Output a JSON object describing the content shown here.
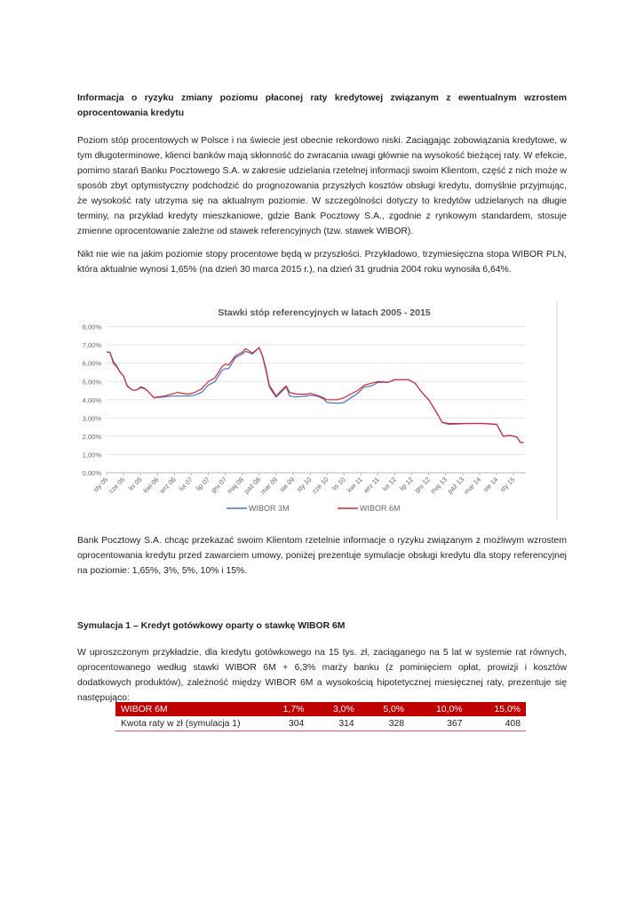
{
  "title": "Informacja o ryzyku zmiany poziomu płaconej raty kredytowej związanym z ewentualnym wzrostem oprocentowania kredytu",
  "paragraphs": [
    "Poziom stóp procentowych w Polsce i na świecie jest obecnie rekordowo niski. Zaciągając zobowiązania kredytowe, w tym długoterminowe, klienci banków mają skłonność do zwracania uwagi głównie na wysokość bieżącej raty. W efekcie, pomimo starań Banku Pocztowego S.A. w zakresie udzielania rzetelnej informacji swoim Klientom, część z nich może w sposób zbyt optymistyczny podchodzić do prognozowania przyszłych kosztów obsługi kredytu, domyślnie przyjmując, że wysokość raty utrzyma się na aktualnym poziomie. W szczególności dotyczy to kredytów udzielanych na długie terminy, na przykład kredyty mieszkaniowe, gdzie Bank Pocztowy S.A., zgodnie z rynkowym standardem, stosuje zmienne oprocentowanie zależne od stawek referencyjnych (tzw. stawek WIBOR).",
    "Nikt nie wie na jakim poziomie stopy procentowe będą w przyszłości. Przykładowo, trzymiesięczna stopa WIBOR PLN, która aktualnie wynosi 1,65% (na dzień 30 marca 2015 r.), na dzień 31 grudnia 2004 roku wynosiła 6,64%.",
    "Bank Pocztowy S.A. chcąc przekazać swoim Klientom rzetelnie informacje o ryzyku związanym z możliwym wzrostem oprocentowania kredytu przed zawarciem umowy, poniżej prezentuje symulacje obsługi kredytu dla stopy referencyjnej na poziomie: 1,65%, 3%, 5%, 10% i 15%."
  ],
  "simulation": {
    "heading": "Symulacja 1 – Kredyt gotówkowy oparty o stawkę WIBOR 6M",
    "text": "W uproszczonym przykładzie, dla kredytu gotówkowego na 15 tys. zł, zaciąganego na 5 lat w systemie rat równych, oprocentowanego według stawki WIBOR 6M + 6,3% marży banku (z pominięciem opłat, prowizji i kosztów dodatkowych produktów), zależność między WIBOR 6M a wysokością hipotetycznej miesięcznej raty, prezentuje się następująco:",
    "table": {
      "header": [
        "WIBOR 6M",
        "1,7%",
        "3,0%",
        "5,0%",
        "10,0%",
        "15,0%"
      ],
      "row": [
        "Kwota raty w zł (symulacja 1)",
        "304",
        "314",
        "328",
        "367",
        "408"
      ],
      "header_color": "#c00000"
    }
  },
  "chart_data": {
    "type": "line",
    "title": "Stawki stóp referencyjnych w latach 2005 - 2015",
    "ylim": [
      0,
      8
    ],
    "yticks": [
      "0,00%",
      "1,00%",
      "2,00%",
      "3,00%",
      "4,00%",
      "5,00%",
      "6,00%",
      "7,00%",
      "8,00%"
    ],
    "xticks": [
      "sty 05",
      "cze 05",
      "lis 05",
      "kwi 06",
      "wrz 06",
      "lut 07",
      "lip 07",
      "gru 07",
      "maj 08",
      "paź 08",
      "mar 09",
      "sie 09",
      "sty 10",
      "cze 10",
      "lis 10",
      "kwi 11",
      "wrz 11",
      "lut 12",
      "lip 12",
      "gru 12",
      "maj 13",
      "paź 13",
      "mar 14",
      "sie 14",
      "sty 15"
    ],
    "grid": true,
    "legend": "bottom",
    "x": [
      "2005-01",
      "2005-02",
      "2005-03",
      "2005-04",
      "2005-05",
      "2005-06",
      "2005-07",
      "2005-08",
      "2005-09",
      "2005-10",
      "2005-11",
      "2005-12",
      "2006-01",
      "2006-02",
      "2006-03",
      "2006-04",
      "2006-06",
      "2006-08",
      "2006-10",
      "2007-01",
      "2007-03",
      "2007-05",
      "2007-07",
      "2007-09",
      "2007-11",
      "2007-12",
      "2008-01",
      "2008-03",
      "2008-05",
      "2008-06",
      "2008-08",
      "2008-10",
      "2008-11",
      "2008-12",
      "2009-01",
      "2009-02",
      "2009-03",
      "2009-05",
      "2009-06",
      "2009-07",
      "2009-09",
      "2009-12",
      "2010-01",
      "2010-03",
      "2010-05",
      "2010-06",
      "2010-09",
      "2010-11",
      "2011-01",
      "2011-03",
      "2011-05",
      "2011-07",
      "2011-09",
      "2011-12",
      "2012-02",
      "2012-06",
      "2012-08",
      "2012-10",
      "2012-12",
      "2013-02",
      "2013-04",
      "2013-06",
      "2013-12",
      "2014-04",
      "2014-08",
      "2014-10",
      "2014-12",
      "2015-02",
      "2015-03",
      "2015-04"
    ],
    "series": [
      {
        "name": "WIBOR 3M",
        "color": "#4472c4",
        "values": [
          6.62,
          6.6,
          6.1,
          5.85,
          5.5,
          5.3,
          4.75,
          4.6,
          4.5,
          4.55,
          4.65,
          4.62,
          4.5,
          4.3,
          4.1,
          4.12,
          4.15,
          4.2,
          4.2,
          4.2,
          4.25,
          4.4,
          4.8,
          5.0,
          5.6,
          5.7,
          5.7,
          6.3,
          6.5,
          6.65,
          6.5,
          6.85,
          6.35,
          5.6,
          4.7,
          4.4,
          4.15,
          4.5,
          4.7,
          4.2,
          4.15,
          4.2,
          4.25,
          4.2,
          4.05,
          3.85,
          3.8,
          3.85,
          4.1,
          4.35,
          4.7,
          4.75,
          4.95,
          4.95,
          5.1,
          5.1,
          4.9,
          4.4,
          4.0,
          3.4,
          2.75,
          2.65,
          2.7,
          2.7,
          2.65,
          2.0,
          2.05,
          1.95,
          1.66,
          1.65
        ]
      },
      {
        "name": "WIBOR 6M",
        "color": "#d9262c",
        "values": [
          6.62,
          6.6,
          6.0,
          5.8,
          5.5,
          5.3,
          4.8,
          4.6,
          4.5,
          4.55,
          4.7,
          4.65,
          4.5,
          4.3,
          4.1,
          4.15,
          4.2,
          4.3,
          4.4,
          4.3,
          4.4,
          4.6,
          5.0,
          5.2,
          5.8,
          5.95,
          5.9,
          6.4,
          6.6,
          6.8,
          6.55,
          6.85,
          6.4,
          5.7,
          4.8,
          4.5,
          4.2,
          4.6,
          4.75,
          4.4,
          4.3,
          4.3,
          4.35,
          4.25,
          4.1,
          4.0,
          4.0,
          4.1,
          4.3,
          4.5,
          4.8,
          4.9,
          5.0,
          4.95,
          5.1,
          5.1,
          4.9,
          4.4,
          4.0,
          3.4,
          2.75,
          2.7,
          2.7,
          2.7,
          2.65,
          2.0,
          2.05,
          1.95,
          1.67,
          1.65
        ]
      }
    ]
  }
}
